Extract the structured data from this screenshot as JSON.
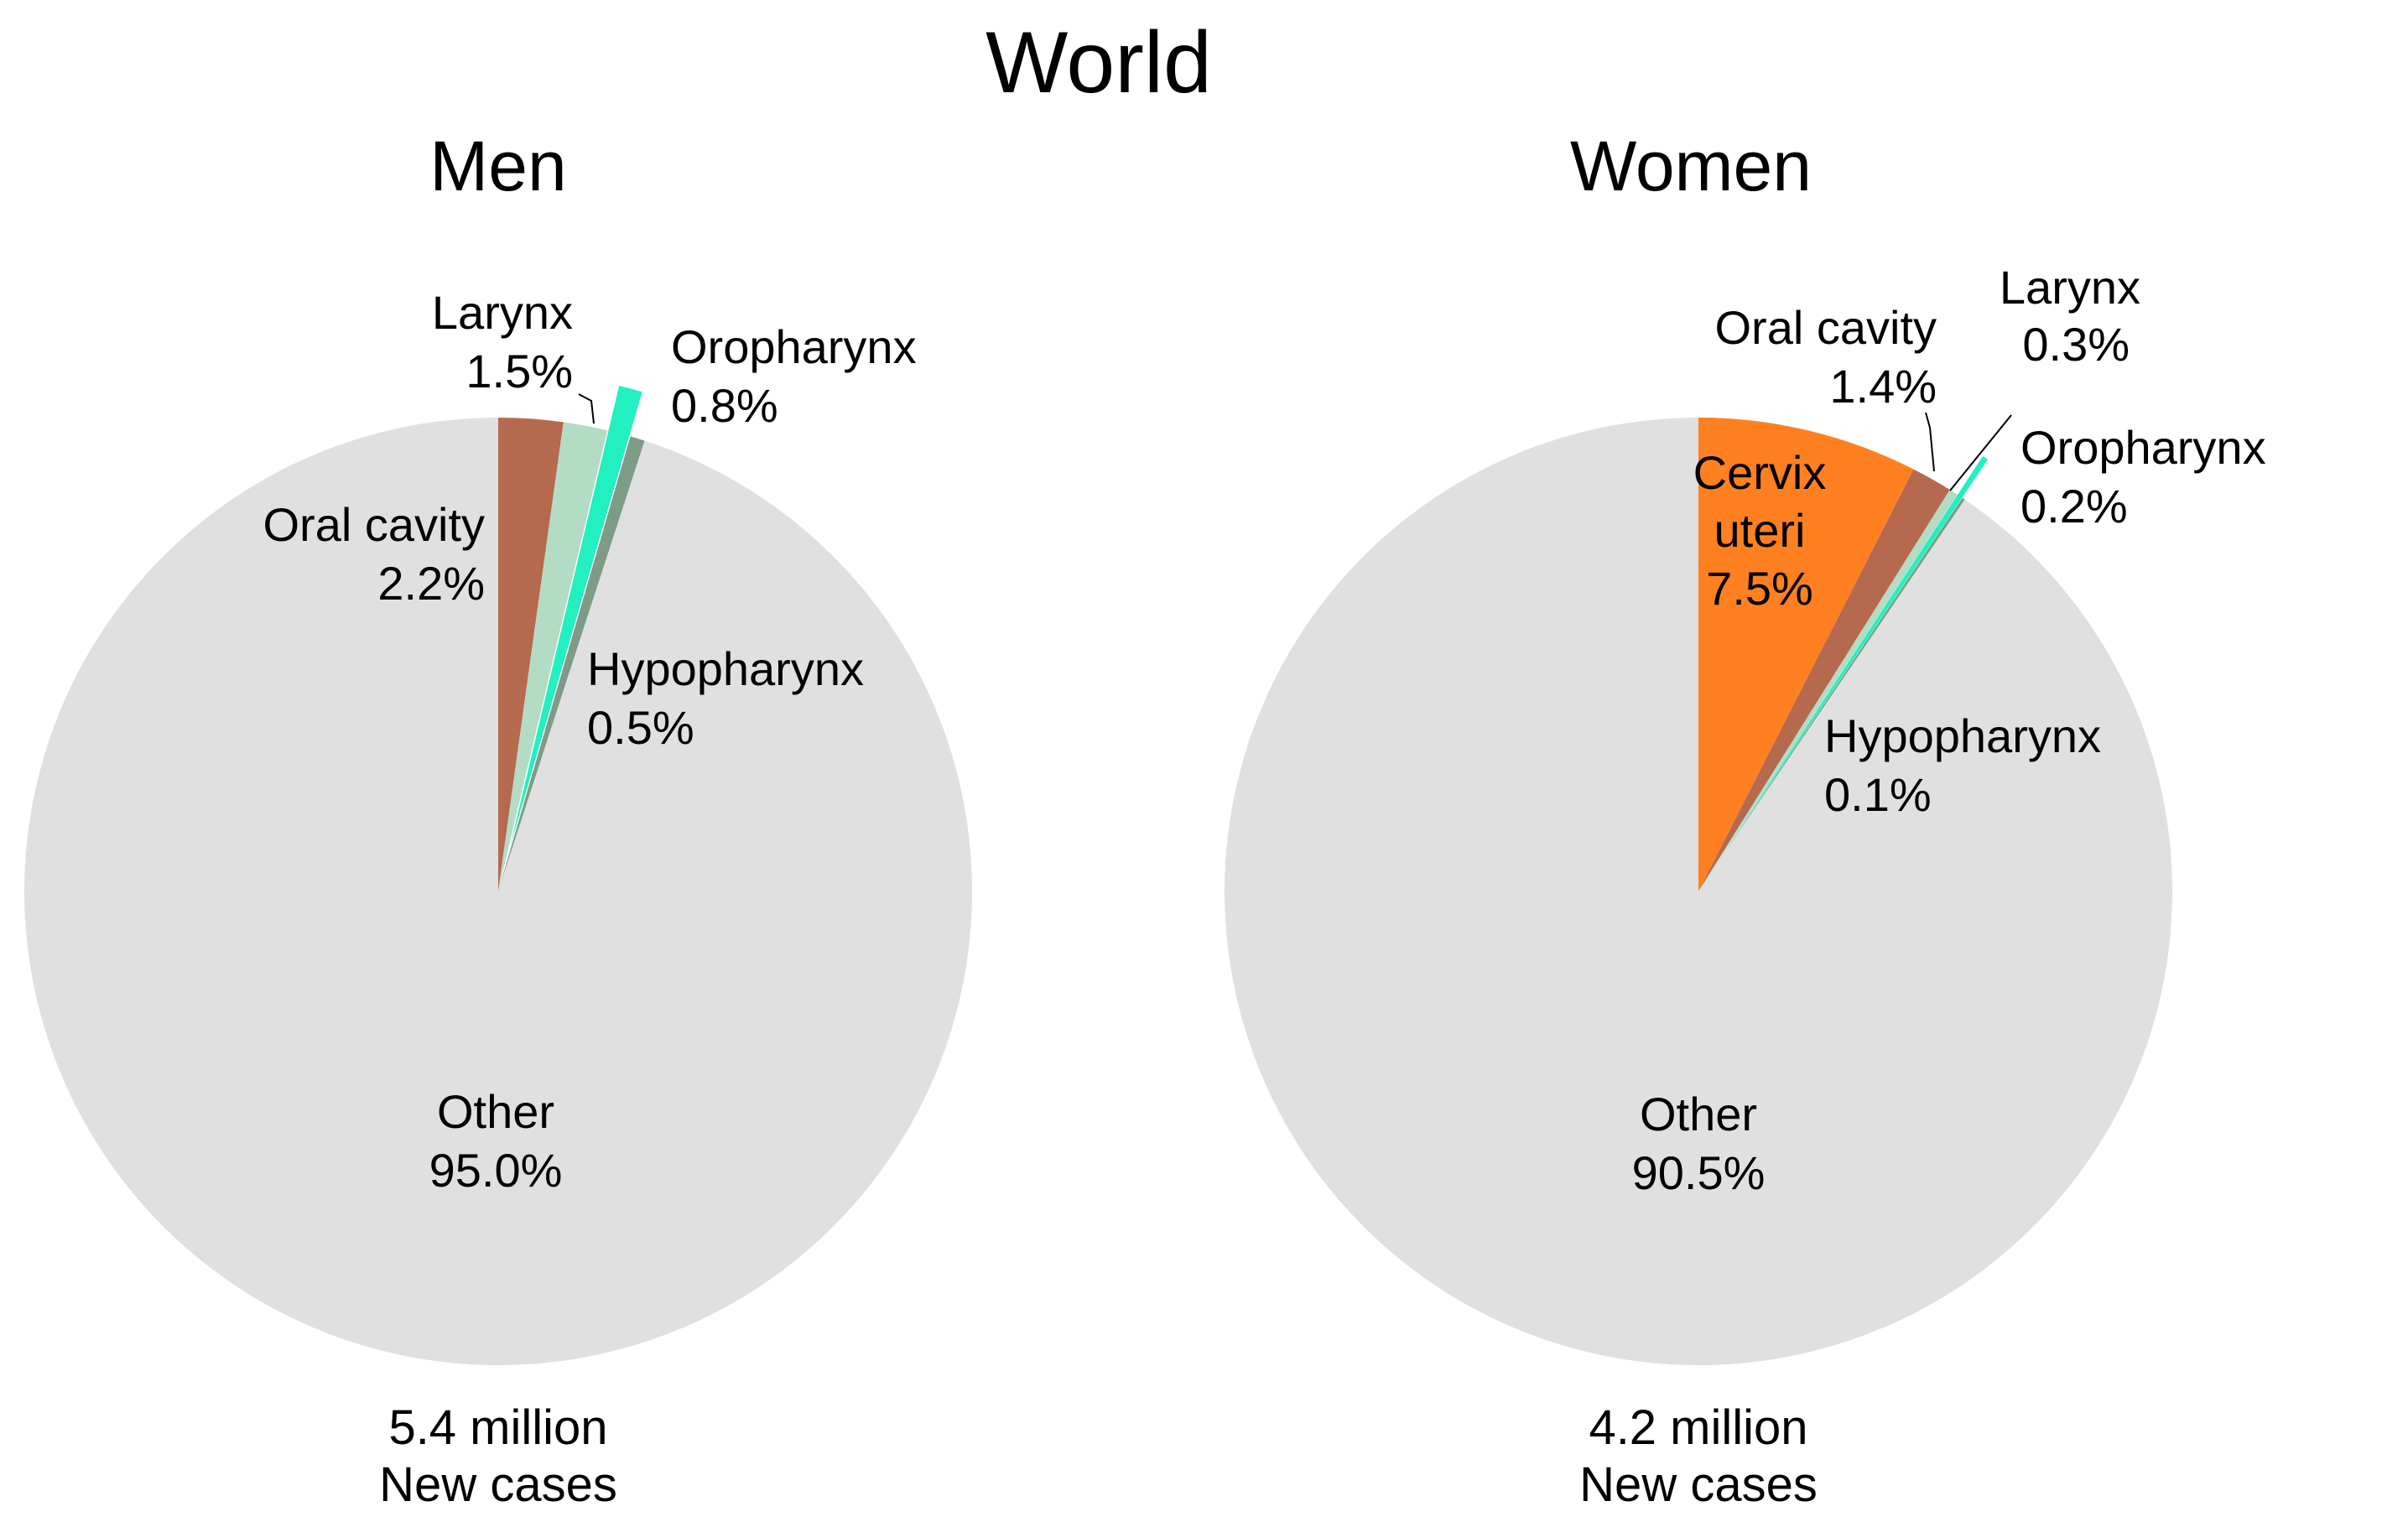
{
  "title": "World",
  "colors": {
    "Other": "#e0e0e0",
    "Oral cavity": "#b56a50",
    "Larynx": "#b4dcc4",
    "Oropharynx": "#22f0c0",
    "Hypopharynx": "#7e9b86",
    "Cervix uteri": "#ff8020"
  },
  "chart_data": [
    {
      "type": "pie",
      "title": "Men",
      "total_line1": "5.4 million",
      "total_line2": "New cases",
      "slices": [
        {
          "label": "Oral cavity",
          "value": 2.2,
          "value_text": "2.2%",
          "exploded": false
        },
        {
          "label": "Larynx",
          "value": 1.5,
          "value_text": "1.5%",
          "exploded": false
        },
        {
          "label": "Oropharynx",
          "value": 0.8,
          "value_text": "0.8%",
          "exploded": true
        },
        {
          "label": "Hypopharynx",
          "value": 0.5,
          "value_text": "0.5%",
          "exploded": false
        },
        {
          "label": "Other",
          "value": 95.0,
          "value_text": "95.0%",
          "exploded": false
        }
      ]
    },
    {
      "type": "pie",
      "title": "Women",
      "total_line1": "4.2 million",
      "total_line2": "New cases",
      "slices": [
        {
          "label": "Cervix uteri",
          "value": 7.5,
          "value_text": "7.5%",
          "exploded": false
        },
        {
          "label": "Oral cavity",
          "value": 1.4,
          "value_text": "1.4%",
          "exploded": false
        },
        {
          "label": "Larynx",
          "value": 0.3,
          "value_text": "0.3%",
          "exploded": false
        },
        {
          "label": "Oropharynx",
          "value": 0.2,
          "value_text": "0.2%",
          "exploded": true
        },
        {
          "label": "Hypopharynx",
          "value": 0.1,
          "value_text": "0.1%",
          "exploded": false
        },
        {
          "label": "Other",
          "value": 90.5,
          "value_text": "90.5%",
          "exploded": false
        }
      ]
    }
  ]
}
